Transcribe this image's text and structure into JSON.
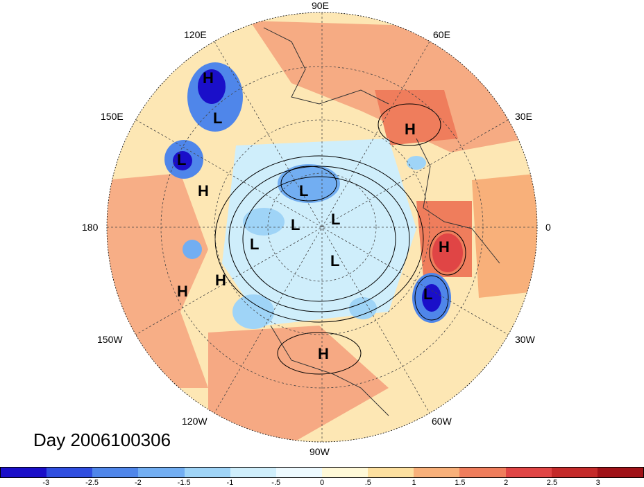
{
  "title": "Day 2006100306",
  "longitude_labels": {
    "lon_90E": "90E",
    "lon_60E": "60E",
    "lon_30E": "30E",
    "lon_0": "0",
    "lon_30W": "30W",
    "lon_60W": "60W",
    "lon_90W": "90W",
    "lon_120W": "120W",
    "lon_150W": "150W",
    "lon_180": "180",
    "lon_150E": "150E",
    "lon_120E": "120E"
  },
  "colorbar": {
    "ticks": [
      "-3",
      "-2.5",
      "-2",
      "-1.5",
      "-1",
      "-.5",
      "0",
      ".5",
      "1",
      "1.5",
      "2",
      "2.5",
      "3"
    ],
    "colors": [
      "#1a0fc9",
      "#2f4ee0",
      "#4f86ea",
      "#72aef2",
      "#9fd4f7",
      "#cfeefb",
      "#eefaff",
      "#fff9d8",
      "#fde0a0",
      "#f8b07a",
      "#ef7d5c",
      "#e04545",
      "#c42a2a",
      "#a01218"
    ]
  },
  "pressure_systems": [
    {
      "label": "H"
    },
    {
      "label": "L"
    },
    {
      "label": "L"
    },
    {
      "label": "H"
    },
    {
      "label": "H"
    },
    {
      "label": "L"
    },
    {
      "label": "L"
    },
    {
      "label": "L"
    },
    {
      "label": "L"
    },
    {
      "label": "L"
    },
    {
      "label": "H"
    },
    {
      "label": "H"
    },
    {
      "label": "H"
    },
    {
      "label": "L"
    },
    {
      "label": "H"
    }
  ]
}
